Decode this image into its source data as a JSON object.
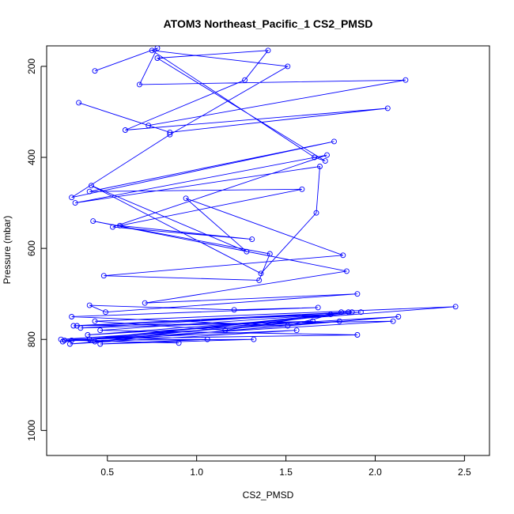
{
  "chart_data": {
    "type": "line",
    "title": "ATOM3 Northeast_Pacific_1 CS2_PMSD",
    "xlabel": "CS2_PMSD",
    "ylabel": "Pressure (mbar)",
    "xlim": [
      0.16,
      2.64
    ],
    "ylim": [
      1055,
      155
    ],
    "y_reversed": true,
    "xticks": [
      0.5,
      1.0,
      1.5,
      2.0,
      2.5
    ],
    "xtick_labels": [
      "0.5",
      "1.0",
      "1.5",
      "2.0",
      "2.5"
    ],
    "yticks": [
      200,
      400,
      600,
      800,
      1000
    ],
    "ytick_labels": [
      "200",
      "400",
      "600",
      "800",
      "1000"
    ],
    "grid": false,
    "line_color": "#0000ff",
    "marker": "open-circle",
    "series": [
      {
        "x": [
          0.43,
          0.78,
          0.68,
          2.17,
          0.73,
          0.34,
          0.85,
          2.07,
          0.6,
          1.27,
          1.4,
          0.78,
          1.72,
          1.66,
          0.75,
          1.51,
          0.85,
          0.3,
          1.77,
          0.4,
          1.59,
          0.57,
          1.31,
          0.53,
          1.73,
          0.32,
          1.69,
          1.67,
          1.36,
          0.41,
          1.28,
          0.94,
          1.82,
          0.48,
          1.35,
          1.41,
          0.42,
          1.84,
          0.71,
          1.9,
          0.49,
          0.4,
          1.21,
          1.68,
          0.3,
          1.51,
          1.81,
          1.16,
          0.43,
          2.45,
          0.39,
          2.13,
          0.43,
          1.92,
          0.4,
          2.1,
          0.31,
          1.85,
          0.35,
          1.65,
          0.25,
          1.87,
          0.33,
          1.75,
          0.46,
          1.9,
          0.24,
          1.8,
          0.29,
          1.56,
          0.26,
          1.32,
          0.46,
          1.06,
          0.3,
          0.9
        ],
        "y": [
          210,
          160,
          240,
          230,
          330,
          280,
          345,
          292,
          340,
          230,
          165,
          182,
          408,
          400,
          165,
          200,
          350,
          488,
          365,
          475,
          470,
          550,
          580,
          553,
          395,
          500,
          420,
          522,
          655,
          462,
          607,
          490,
          615,
          660,
          670,
          612,
          540,
          650,
          720,
          700,
          740,
          725,
          735,
          730,
          750,
          770,
          740,
          780,
          760,
          728,
          790,
          750,
          805,
          740,
          800,
          760,
          770,
          740,
          775,
          760,
          805,
          740,
          770,
          745,
          780,
          790,
          800,
          760,
          810,
          780,
          802,
          800,
          810,
          800,
          802,
          808
        ]
      }
    ]
  }
}
